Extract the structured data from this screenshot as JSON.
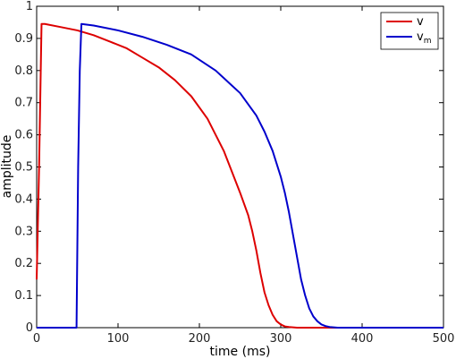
{
  "chart_data": {
    "type": "line",
    "xlabel": "time (ms)",
    "ylabel": "amplitude",
    "xlim": [
      0,
      500
    ],
    "ylim": [
      0,
      1
    ],
    "xticks": [
      0,
      100,
      200,
      300,
      400,
      500
    ],
    "yticks": [
      0,
      0.1,
      0.2,
      0.3,
      0.4,
      0.5,
      0.6,
      0.7,
      0.8,
      0.9,
      1
    ],
    "grid": false,
    "legend_position": "top-right",
    "series": [
      {
        "name": "v",
        "color": "#dd0000",
        "x": [
          0,
          3,
          6,
          10,
          30,
          50,
          70,
          90,
          110,
          130,
          150,
          170,
          190,
          210,
          230,
          250,
          260,
          265,
          270,
          275,
          280,
          285,
          290,
          295,
          300,
          305,
          310,
          320,
          330,
          350,
          400,
          500
        ],
        "y": [
          0.15,
          0.5,
          0.945,
          0.945,
          0.935,
          0.925,
          0.91,
          0.89,
          0.87,
          0.84,
          0.81,
          0.77,
          0.72,
          0.65,
          0.55,
          0.42,
          0.35,
          0.3,
          0.24,
          0.17,
          0.11,
          0.07,
          0.04,
          0.02,
          0.01,
          0.004,
          0.002,
          0,
          0,
          0,
          0,
          0
        ]
      },
      {
        "name": "v_m",
        "legend_main": "v",
        "legend_sub": "m",
        "color": "#0000cc",
        "x": [
          0,
          49,
          51,
          53,
          55,
          70,
          100,
          130,
          160,
          190,
          220,
          250,
          270,
          280,
          290,
          300,
          305,
          310,
          315,
          320,
          325,
          330,
          335,
          340,
          345,
          350,
          355,
          360,
          370,
          400,
          500
        ],
        "y": [
          0,
          0,
          0.5,
          0.8,
          0.945,
          0.94,
          0.925,
          0.905,
          0.88,
          0.85,
          0.8,
          0.73,
          0.66,
          0.61,
          0.55,
          0.47,
          0.42,
          0.36,
          0.29,
          0.22,
          0.15,
          0.1,
          0.06,
          0.035,
          0.02,
          0.01,
          0.005,
          0.002,
          0,
          0,
          0
        ]
      }
    ]
  }
}
